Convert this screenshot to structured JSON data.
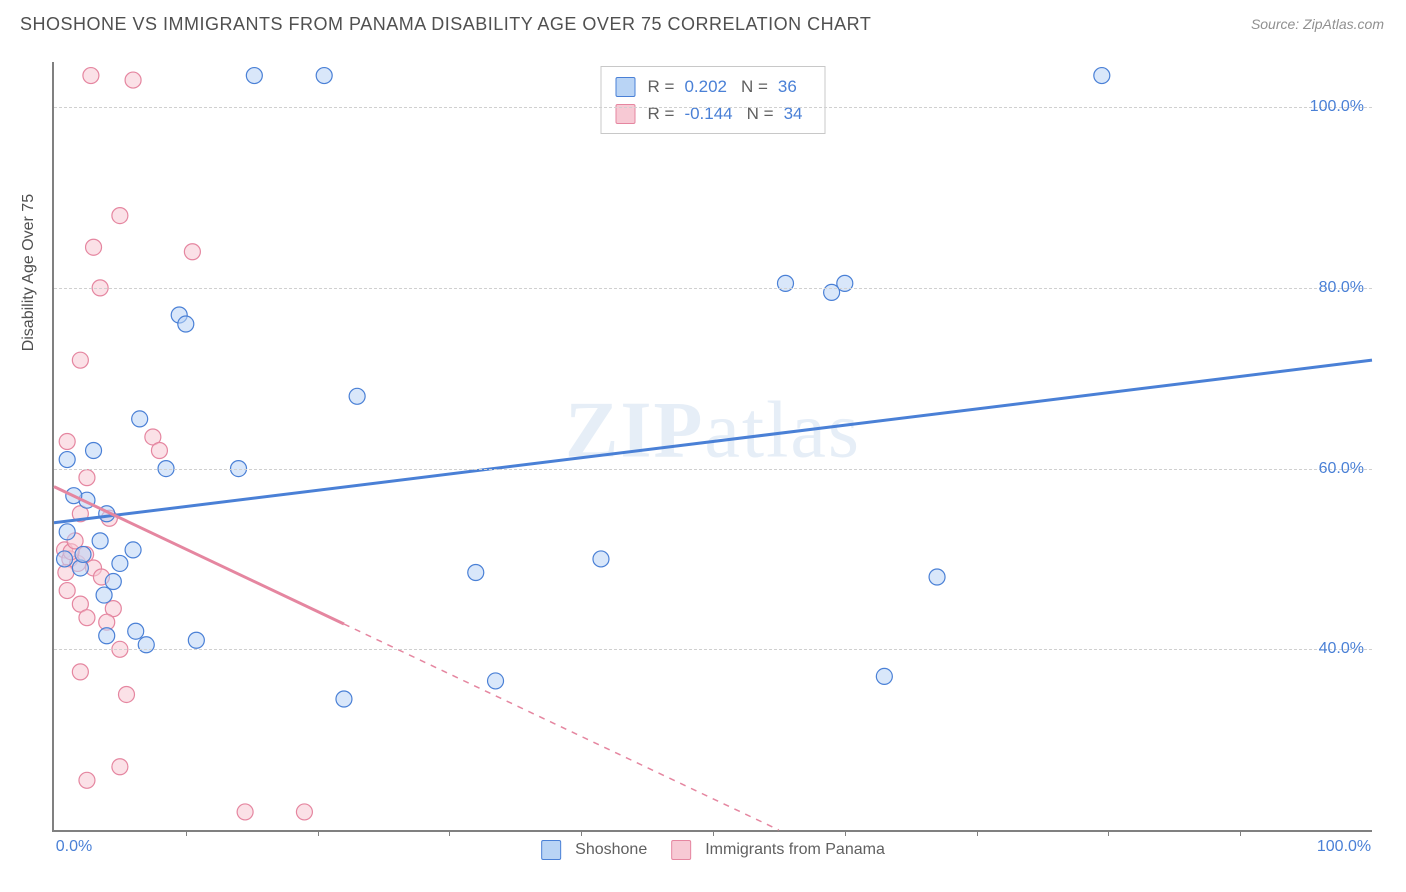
{
  "header": {
    "title": "SHOSHONE VS IMMIGRANTS FROM PANAMA DISABILITY AGE OVER 75 CORRELATION CHART",
    "source": "Source: ZipAtlas.com"
  },
  "watermark": {
    "zip": "ZIP",
    "atlas": "atlas"
  },
  "chart": {
    "type": "scatter",
    "ylabel": "Disability Age Over 75",
    "background_color": "#ffffff",
    "grid_color": "#d0d0d0",
    "axis_color": "#808080",
    "xlim": [
      0,
      100
    ],
    "ylim": [
      20,
      105
    ],
    "ytick_labels": [
      "40.0%",
      "60.0%",
      "80.0%",
      "100.0%"
    ],
    "ytick_values": [
      40,
      60,
      80,
      100
    ],
    "xtick_labels_shown": [
      "0.0%",
      "100.0%"
    ],
    "xtick_values_shown": [
      0,
      100
    ],
    "xtick_marks": [
      10,
      20,
      30,
      40,
      50,
      60,
      70,
      80,
      90
    ],
    "marker_radius": 8,
    "marker_opacity": 0.55,
    "line_width": 3,
    "series": [
      {
        "name": "Shoshone",
        "color_fill": "#b9d4f5",
        "color_stroke": "#4a80d6",
        "r_value": "0.202",
        "n_value": "36",
        "trend": {
          "x1": 0,
          "y1": 54,
          "x2": 100,
          "y2": 72,
          "solid_until_x": 100
        },
        "points": [
          [
            15.2,
            103.5
          ],
          [
            20.5,
            103.5
          ],
          [
            79.5,
            103.5
          ],
          [
            55.5,
            80.5
          ],
          [
            60.0,
            80.5
          ],
          [
            9.5,
            77.0
          ],
          [
            10.0,
            76.0
          ],
          [
            23.0,
            68.0
          ],
          [
            6.5,
            65.5
          ],
          [
            3.0,
            62.0
          ],
          [
            1.0,
            61.0
          ],
          [
            8.5,
            60.0
          ],
          [
            14.0,
            60.0
          ],
          [
            2.5,
            56.5
          ],
          [
            4.0,
            55.0
          ],
          [
            1.0,
            53.0
          ],
          [
            3.5,
            52.0
          ],
          [
            6.0,
            51.0
          ],
          [
            32.0,
            48.5
          ],
          [
            41.5,
            50.0
          ],
          [
            67.0,
            48.0
          ],
          [
            2.0,
            49.0
          ],
          [
            4.5,
            47.5
          ],
          [
            10.8,
            41.0
          ],
          [
            4.0,
            41.5
          ],
          [
            63.0,
            37.0
          ],
          [
            33.5,
            36.5
          ],
          [
            22.0,
            34.5
          ],
          [
            7.0,
            40.5
          ],
          [
            1.5,
            57.0
          ],
          [
            0.8,
            50.0
          ],
          [
            2.2,
            50.5
          ],
          [
            5.0,
            49.5
          ],
          [
            6.2,
            42.0
          ],
          [
            59.0,
            79.5
          ],
          [
            3.8,
            46.0
          ]
        ]
      },
      {
        "name": "Immigants from Panama",
        "legend_label": "Immigrants from Panama",
        "color_fill": "#f7c9d4",
        "color_stroke": "#e586a0",
        "r_value": "-0.144",
        "n_value": "34",
        "trend": {
          "x1": 0,
          "y1": 58,
          "x2": 55,
          "y2": 20,
          "solid_until_x": 22
        },
        "points": [
          [
            2.8,
            103.5
          ],
          [
            6.0,
            103.0
          ],
          [
            5.0,
            88.0
          ],
          [
            3.0,
            84.5
          ],
          [
            10.5,
            84.0
          ],
          [
            3.5,
            80.0
          ],
          [
            2.0,
            72.0
          ],
          [
            1.0,
            63.0
          ],
          [
            2.5,
            59.0
          ],
          [
            7.5,
            63.5
          ],
          [
            8.0,
            62.0
          ],
          [
            2.0,
            55.0
          ],
          [
            4.2,
            54.5
          ],
          [
            0.8,
            51.0
          ],
          [
            1.2,
            50.0
          ],
          [
            1.8,
            49.5
          ],
          [
            2.4,
            50.5
          ],
          [
            3.0,
            49.0
          ],
          [
            3.6,
            48.0
          ],
          [
            1.0,
            46.5
          ],
          [
            2.0,
            45.0
          ],
          [
            4.5,
            44.5
          ],
          [
            2.5,
            43.5
          ],
          [
            4.0,
            43.0
          ],
          [
            5.0,
            40.0
          ],
          [
            2.0,
            37.5
          ],
          [
            5.5,
            35.0
          ],
          [
            5.0,
            27.0
          ],
          [
            2.5,
            25.5
          ],
          [
            14.5,
            22.0
          ],
          [
            19.0,
            22.0
          ],
          [
            1.3,
            50.8
          ],
          [
            0.9,
            48.5
          ],
          [
            1.6,
            52.0
          ]
        ]
      }
    ],
    "legend_top": {
      "r_label": "R =",
      "n_label": "N ="
    },
    "legend_bottom": {
      "series1_label": "Shoshone",
      "series2_label": "Immigrants from Panama"
    }
  }
}
